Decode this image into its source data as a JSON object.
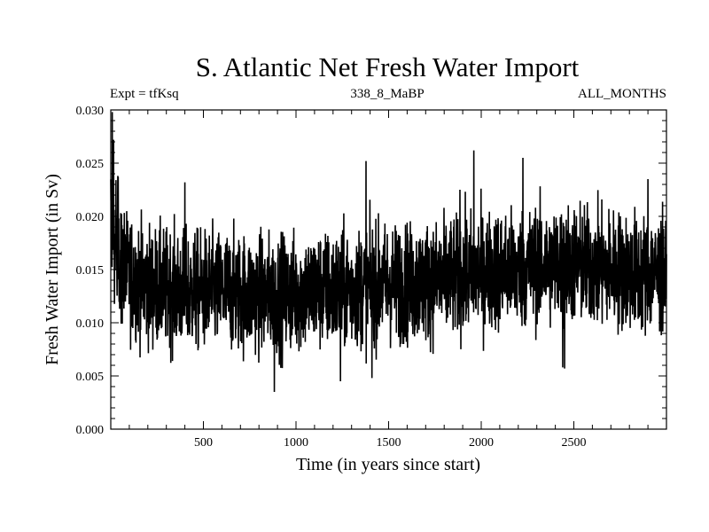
{
  "chart_data": {
    "type": "line",
    "title": "S. Atlantic Net Fresh Water Import",
    "subtitle_left": "Expt = tfKsq",
    "subtitle_center": "338_8_MaBP",
    "subtitle_right": "ALL_MONTHS",
    "xlabel": "Time (in years since start)",
    "ylabel": "Fresh Water Import (in Sv)",
    "xlim": [
      0,
      3000
    ],
    "ylim": [
      0,
      0.03
    ],
    "x_ticks": [
      500,
      1000,
      1500,
      2000,
      2500
    ],
    "x_tick_labels": [
      "500",
      "1000",
      "1500",
      "2000",
      "2500"
    ],
    "y_ticks": [
      0,
      0.005,
      0.01,
      0.015,
      0.02,
      0.025,
      0.03
    ],
    "y_tick_labels": [
      "0.000",
      "0.005",
      "0.010",
      "0.015",
      "0.020",
      "0.025",
      "0.030"
    ],
    "series": [
      {
        "name": "Net fresh water import",
        "color": "#000000",
        "x": [
          0,
          20,
          50,
          100,
          200,
          300,
          400,
          500,
          600,
          700,
          800,
          900,
          1000,
          1100,
          1200,
          1300,
          1400,
          1500,
          1600,
          1700,
          1800,
          1900,
          2000,
          2100,
          2200,
          2300,
          2400,
          2500,
          2600,
          2700,
          2800,
          2900,
          3000
        ],
        "mean": [
          0.0195,
          0.0175,
          0.0155,
          0.0145,
          0.0135,
          0.0132,
          0.013,
          0.013,
          0.013,
          0.0128,
          0.0127,
          0.0126,
          0.0128,
          0.013,
          0.013,
          0.0132,
          0.0135,
          0.0137,
          0.0137,
          0.0138,
          0.014,
          0.0145,
          0.0148,
          0.015,
          0.015,
          0.0153,
          0.0154,
          0.0155,
          0.0153,
          0.015,
          0.0148,
          0.0146,
          0.0145
        ],
        "spread": 0.0028,
        "max": 0.0298,
        "min": 0.0035,
        "spikes": [
          {
            "x": 8,
            "y": 0.0298
          },
          {
            "x": 15,
            "y": 0.0272
          },
          {
            "x": 38,
            "y": 0.0238
          },
          {
            "x": 400,
            "y": 0.0232
          },
          {
            "x": 883,
            "y": 0.0035
          },
          {
            "x": 1240,
            "y": 0.0045
          },
          {
            "x": 1378,
            "y": 0.0252
          },
          {
            "x": 1410,
            "y": 0.0048
          },
          {
            "x": 1885,
            "y": 0.0225
          },
          {
            "x": 1960,
            "y": 0.0262
          },
          {
            "x": 2225,
            "y": 0.0255
          },
          {
            "x": 2440,
            "y": 0.0058
          },
          {
            "x": 2450,
            "y": 0.0057
          },
          {
            "x": 2900,
            "y": 0.0235
          }
        ]
      }
    ]
  }
}
